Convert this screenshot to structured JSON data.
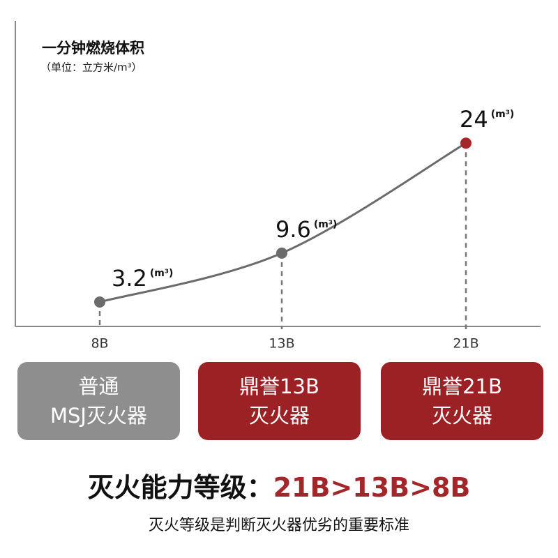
{
  "chart_data": {
    "type": "line",
    "title": "一分钟燃烧体积",
    "subtitle": "（单位：立方米/m³）",
    "categories": [
      "8B",
      "13B",
      "21B"
    ],
    "values": [
      3.2,
      9.6,
      24
    ],
    "value_unit": "(m³)",
    "line_color": "#6b6b6b",
    "point_colors": [
      "#6b6b6b",
      "#6b6b6b",
      "#a3262a"
    ],
    "ylim": [
      0,
      40
    ]
  },
  "cards": [
    {
      "lines": [
        "普通",
        "MSJ灭火器"
      ],
      "color": "#8e8e8e"
    },
    {
      "lines": [
        "鼎誉13B",
        "灭火器"
      ],
      "color": "#9b2124"
    },
    {
      "lines": [
        "鼎誉21B",
        "灭火器"
      ],
      "color": "#9b2124"
    }
  ],
  "footer": {
    "heading": "灭火能力等级：",
    "ranking": "21B>13B>8B",
    "ranking_color": "#a3262a",
    "note": "灭火等级是判断灭火器优劣的重要标准"
  }
}
